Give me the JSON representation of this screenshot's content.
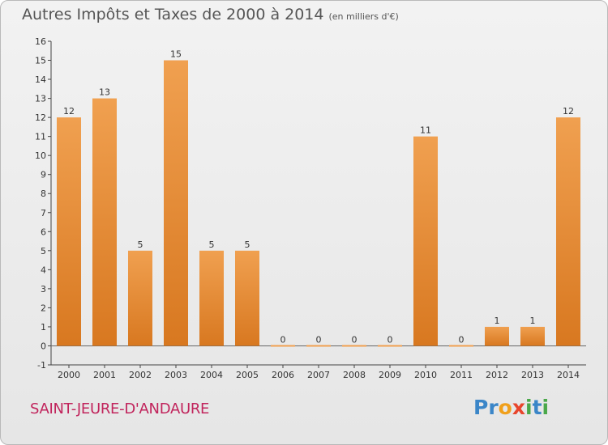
{
  "header": {
    "title": "Autres Impôts et Taxes de 2000 à 2014",
    "subtitle": "(en milliers d'€)"
  },
  "footer": {
    "place": "SAINT-JEURE-D'ANDAURE",
    "logo_letters": [
      "P",
      "r",
      "o",
      "x",
      "i",
      "t",
      "i"
    ],
    "logo_colors": [
      "#3b86c8",
      "#3b86c8",
      "#f0a01c",
      "#e8452c",
      "#4aa84a",
      "#3b86c8",
      "#4aa84a"
    ]
  },
  "chart_data": {
    "type": "bar",
    "categories": [
      "2000",
      "2001",
      "2002",
      "2003",
      "2004",
      "2005",
      "2006",
      "2007",
      "2008",
      "2009",
      "2010",
      "2011",
      "2012",
      "2013",
      "2014"
    ],
    "values": [
      12,
      13,
      5,
      15,
      5,
      5,
      0,
      0,
      0,
      0,
      11,
      0,
      1,
      1,
      12
    ],
    "data_labels": [
      "12",
      "13",
      "5",
      "15",
      "5",
      "5",
      "0",
      "0",
      "0",
      "0",
      "11",
      "0",
      "1",
      "1",
      "12"
    ],
    "yticks": [
      "-1",
      "0",
      "1",
      "2",
      "3",
      "4",
      "5",
      "6",
      "7",
      "8",
      "9",
      "10",
      "11",
      "12",
      "13",
      "14",
      "15",
      "16"
    ],
    "ylim": [
      -1,
      16
    ],
    "grid": false,
    "bar_color": "#f0a050",
    "bar_color_dark": "#d87820"
  }
}
